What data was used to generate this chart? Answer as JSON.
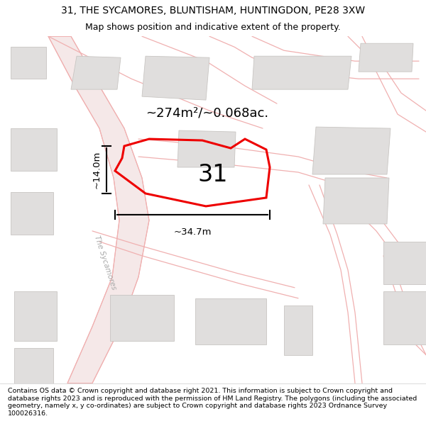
{
  "title": "31, THE SYCAMORES, BLUNTISHAM, HUNTINGDON, PE28 3XW",
  "subtitle": "Map shows position and indicative extent of the property.",
  "footer": "Contains OS data © Crown copyright and database right 2021. This information is subject to Crown copyright and database rights 2023 and is reproduced with the permission of HM Land Registry. The polygons (including the associated geometry, namely x, y co-ordinates) are subject to Crown copyright and database rights 2023 Ordnance Survey 100026316.",
  "area_label": "~274m²/~0.068ac.",
  "width_label": "~34.7m",
  "height_label": "~14.0m",
  "plot_number": "31",
  "map_bg": "#f7f6f4",
  "road_fill": "#f5e8e8",
  "road_edge": "#f0b0b0",
  "building_color": "#e0dedd",
  "building_edge": "#c8c5c2",
  "plot_color": "#ee0000",
  "plot_lw": 2.2,
  "figsize": [
    6.0,
    6.25
  ],
  "dpi": 100,
  "title_fontsize": 10,
  "subtitle_fontsize": 9,
  "footer_fontsize": 6.8
}
